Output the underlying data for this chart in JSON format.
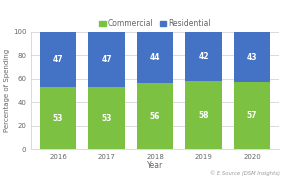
{
  "years": [
    "2016",
    "2017",
    "2018",
    "2019",
    "2020"
  ],
  "commercial": [
    53,
    53,
    56,
    58,
    57
  ],
  "residential": [
    47,
    47,
    44,
    42,
    43
  ],
  "commercial_color": "#7dc143",
  "residential_color": "#4472c4",
  "ylabel": "Percentage of Spending",
  "xlabel": "Year",
  "ylim": [
    0,
    100
  ],
  "yticks": [
    0,
    20,
    40,
    60,
    80,
    100
  ],
  "legend_labels": [
    "Commercial",
    "Residential"
  ],
  "footnote": "© E Source (DSM Insights)",
  "bar_width": 0.75,
  "background_color": "#ffffff",
  "grid_color": "#cccccc",
  "label_fontsize": 5.5,
  "tick_fontsize": 5,
  "legend_fontsize": 5.5,
  "footnote_fontsize": 3.8,
  "ylabel_fontsize": 5,
  "xlabel_fontsize": 5.5
}
